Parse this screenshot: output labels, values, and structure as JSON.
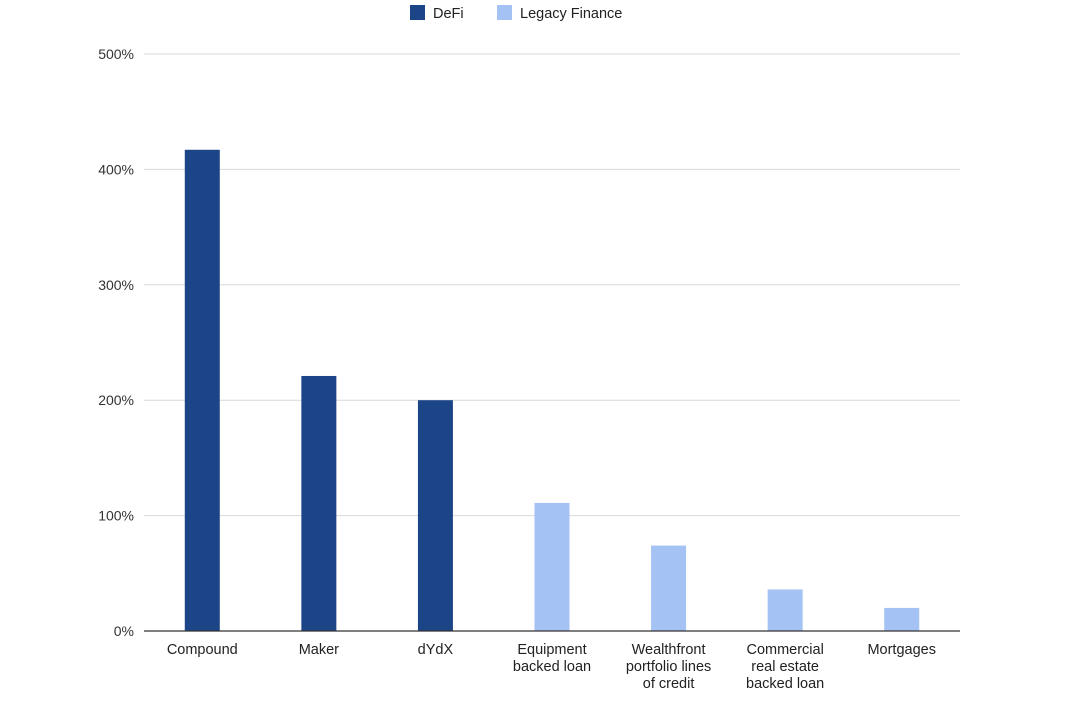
{
  "chart_data": {
    "type": "bar",
    "categories": [
      [
        "Compound"
      ],
      [
        "Maker"
      ],
      [
        "dYdX"
      ],
      [
        "Equipment",
        "backed loan"
      ],
      [
        "Wealthfront",
        "portfolio lines",
        "of credit"
      ],
      [
        "Commercial",
        "real estate",
        "backed loan"
      ],
      [
        "Mortgages"
      ]
    ],
    "series": [
      {
        "name": "DeFi",
        "color": "#1c4587",
        "values": [
          417,
          221,
          200,
          null,
          null,
          null,
          null
        ]
      },
      {
        "name": "Legacy Finance",
        "color": "#a4c2f4",
        "values": [
          null,
          null,
          null,
          111,
          74,
          36,
          20
        ]
      }
    ],
    "ylim": [
      0,
      500
    ],
    "yticks": [
      0,
      100,
      200,
      300,
      400,
      500
    ],
    "ytick_labels": [
      "0%",
      "100%",
      "200%",
      "300%",
      "400%",
      "500%"
    ],
    "grid": true,
    "legend_position": "top-center",
    "title": "",
    "xlabel": "",
    "ylabel": ""
  }
}
